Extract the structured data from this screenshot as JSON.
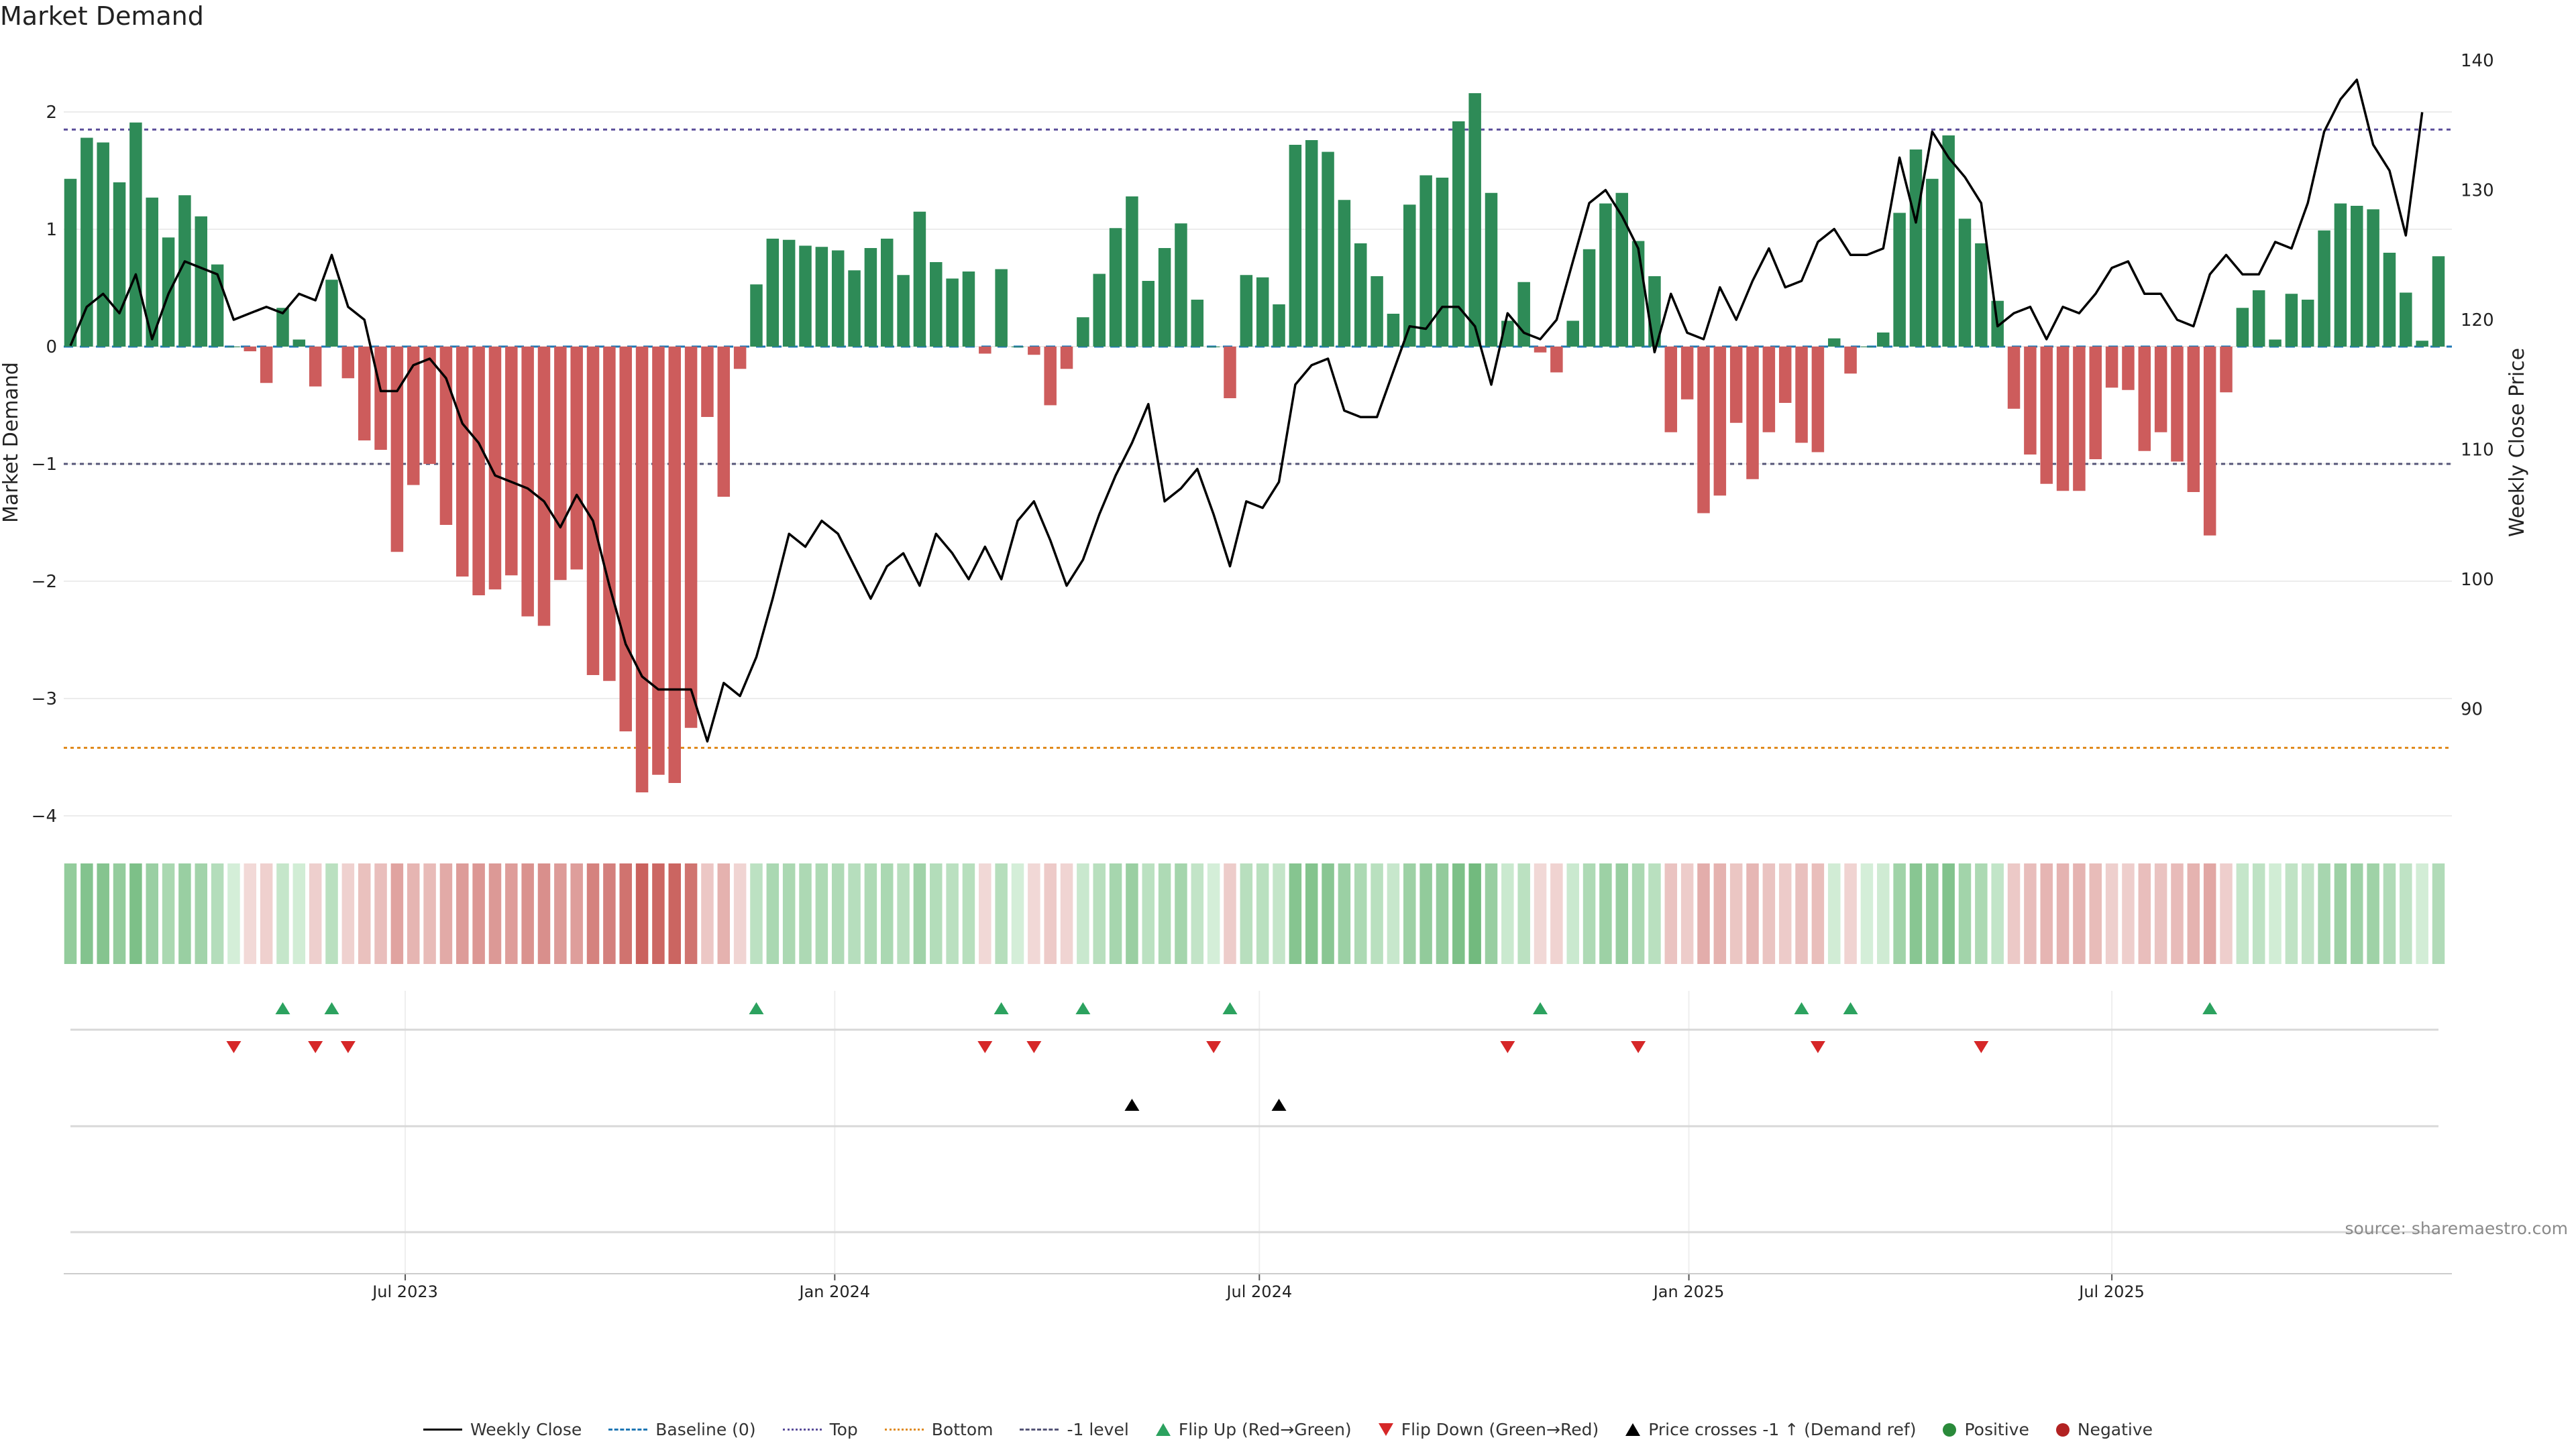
{
  "title": "Market Demand",
  "source": "source: sharemaestro.com",
  "colors": {
    "positive": "#2e8b57",
    "negative": "#cd5c5c",
    "price": "#000000",
    "flip_up": "#2ca25f",
    "flip_down": "#d62728",
    "top_line": "#5a4d9a",
    "bottom_line": "#e08a1e",
    "minus1_line": "#555577"
  },
  "chart_data": {
    "type": "bar",
    "title": "Market Demand",
    "ylabel": "Market Demand",
    "y2label": "Weekly Close Price",
    "ylim": [
      -4.3,
      2.5
    ],
    "y2lim": [
      80,
      141
    ],
    "y_ticks": [
      2,
      1,
      0,
      -1,
      -2,
      -3,
      -4
    ],
    "y_tick_labels": [
      "2",
      "1",
      "0",
      "−1",
      "−2",
      "−3",
      "−4"
    ],
    "y2_ticks": [
      140,
      130,
      120,
      110,
      100,
      90
    ],
    "y2_tick_labels": [
      "140",
      "130",
      "120",
      "110",
      "100",
      "90"
    ],
    "x_tick_labels": [
      "Jul 2023",
      "Jan 2024",
      "Jul 2024",
      "Jan 2025",
      "Jul 2025"
    ],
    "x_tick_index": [
      20.5,
      46.8,
      72.8,
      99.1,
      125
    ],
    "reference_lines": {
      "top": 1.85,
      "bottom": -3.42,
      "minus_one": -1.0,
      "baseline": 0
    },
    "demand": [
      1.43,
      1.78,
      1.74,
      1.4,
      1.91,
      1.27,
      0.93,
      1.29,
      1.11,
      0.7,
      0,
      -0.04,
      -0.31,
      0.33,
      0.06,
      -0.34,
      0.57,
      -0.27,
      -0.8,
      -0.88,
      -1.75,
      -1.18,
      -1.0,
      -1.52,
      -1.96,
      -2.12,
      -2.07,
      -1.95,
      -2.3,
      -2.38,
      -1.99,
      -1.9,
      -2.8,
      -2.85,
      -3.28,
      -3.8,
      -3.65,
      -3.72,
      -3.25,
      -0.6,
      -1.28,
      -0.19,
      0.53,
      0.92,
      0.91,
      0.86,
      0.85,
      0.82,
      0.65,
      0.84,
      0.92,
      0.61,
      1.15,
      0.72,
      0.58,
      0.64,
      -0.06,
      0.66,
      0.0,
      -0.07,
      -0.5,
      -0.19,
      0.25,
      0.62,
      1.01,
      1.28,
      0.56,
      0.84,
      1.05,
      0.4,
      0,
      -0.44,
      0.61,
      0.59,
      0.36,
      1.72,
      1.76,
      1.66,
      1.25,
      0.88,
      0.6,
      0.28,
      1.21,
      1.46,
      1.44,
      1.92,
      2.16,
      1.31,
      0.22,
      0.55,
      -0.05,
      -0.22,
      0.22,
      0.83,
      1.22,
      1.31,
      0.9,
      0.6,
      -0.73,
      -0.45,
      -1.42,
      -1.27,
      -0.65,
      -1.13,
      -0.73,
      -0.48,
      -0.82,
      -0.9,
      0.07,
      -0.23,
      0,
      0.12,
      1.14,
      1.68,
      1.43,
      1.8,
      1.09,
      0.88,
      0.39,
      -0.53,
      -0.92,
      -1.17,
      -1.23,
      -1.23,
      -0.96,
      -0.35,
      -0.37,
      -0.89,
      -0.73,
      -0.98,
      -1.24,
      -1.61,
      -0.39,
      0.33,
      0.48,
      0.06,
      0.45,
      0.4,
      0.99,
      1.22,
      1.2,
      1.17,
      0.8,
      0.46,
      0.05,
      0.77
    ],
    "weekly_close": [
      118,
      121,
      122,
      120.5,
      123.5,
      118.5,
      122,
      124.5,
      124,
      123.5,
      120,
      120.5,
      121,
      120.5,
      122,
      121.5,
      125,
      121,
      120,
      114.5,
      114.5,
      116.5,
      117,
      115.5,
      112,
      110.5,
      108,
      107.5,
      107,
      106,
      104,
      106.5,
      104.5,
      99.5,
      95,
      92.5,
      91.5,
      91.5,
      91.5,
      87.5,
      92,
      91,
      94,
      98.5,
      103.5,
      102.5,
      104.5,
      103.5,
      101,
      98.5,
      101,
      102,
      99.5,
      103.5,
      102,
      100,
      102.5,
      100,
      104.5,
      106,
      103,
      99.5,
      101.5,
      105,
      108,
      110.5,
      113.5,
      106,
      107,
      108.5,
      105,
      101,
      106,
      105.5,
      107.5,
      115,
      116.5,
      117,
      113,
      112.5,
      112.5,
      116,
      119.5,
      119.3,
      121,
      121,
      119.5,
      115,
      120.5,
      119,
      118.5,
      120,
      124.5,
      129,
      130,
      128,
      125.5,
      117.5,
      122,
      119,
      118.5,
      122.5,
      120,
      123,
      125.5,
      122.5,
      123,
      126,
      127,
      125,
      125,
      125.5,
      132.5,
      127.5,
      134.5,
      132.5,
      131,
      129,
      119.5,
      120.5,
      121,
      118.5,
      121,
      120.5,
      122,
      124,
      124.5,
      122,
      122,
      120,
      119.5,
      123.5,
      125,
      123.5,
      123.5,
      126,
      125.5,
      129,
      134.5,
      137,
      138.5,
      133.5,
      131.5,
      126.5,
      136
    ]
  },
  "signal_rows": {
    "flip_up": [
      13,
      16,
      42,
      57,
      62,
      71,
      90,
      106,
      109,
      131
    ],
    "flip_down": [
      10,
      15,
      17,
      56,
      59,
      70,
      88,
      96,
      107,
      117
    ],
    "price_cross": [
      65,
      74
    ]
  },
  "legend": [
    {
      "label": "Weekly Close",
      "symbol": "sym-line"
    },
    {
      "label": "Baseline (0)",
      "symbol": "sym-dash-blue"
    },
    {
      "label": "Top",
      "symbol": "sym-dot-purple"
    },
    {
      "label": "Bottom",
      "symbol": "sym-dot-orange"
    },
    {
      "label": "-1 level",
      "symbol": "sym-dash-gray"
    },
    {
      "label": "Flip Up (Red→Green)",
      "symbol": "sym-tri-up"
    },
    {
      "label": "Flip Down (Green→Red)",
      "symbol": "sym-tri-down"
    },
    {
      "label": "Price crosses -1 ↑ (Demand ref)",
      "symbol": "sym-tri-black"
    },
    {
      "label": "Positive",
      "symbol": "sym-dot-green"
    },
    {
      "label": "Negative",
      "symbol": "sym-dot-red"
    }
  ]
}
